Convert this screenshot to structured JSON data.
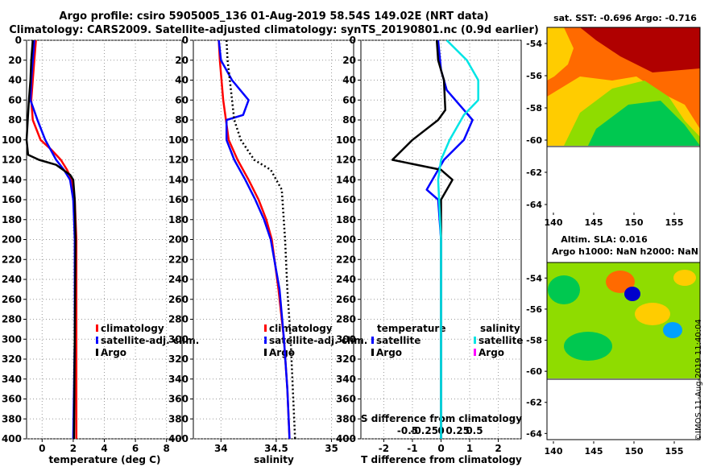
{
  "title": {
    "line1": "Argo profile: csiro 5905005_136 01-Aug-2019 58.54S 149.02E (NRT data)",
    "line2": "Climatology: CARS2009. Satellite-adjusted climatology: synTS_20190801.nc (0.9d earlier)"
  },
  "credit": "©IMOS 11-Aug-2019 11:40:04",
  "depth_ticks": [
    0,
    20,
    40,
    60,
    80,
    100,
    120,
    140,
    160,
    180,
    200,
    220,
    240,
    260,
    280,
    300,
    320,
    340,
    360,
    380,
    400
  ],
  "chart_data": [
    {
      "type": "line",
      "name": "temperature",
      "xlabel": "temperature (deg C)",
      "ylabel": "depth",
      "xlim": [
        -1,
        9
      ],
      "ylim": [
        400,
        0
      ],
      "xticks": [
        0,
        2,
        4,
        6,
        8
      ],
      "tick_labels": [
        "0",
        "2",
        "4",
        "6",
        "8"
      ],
      "legend": [
        "climatology",
        "satellite-adj. clim.",
        "Argo"
      ],
      "series": [
        {
          "name": "climatology",
          "color": "#ff0000",
          "style": "solid",
          "points": [
            [
              -0.4,
              0
            ],
            [
              -0.5,
              20
            ],
            [
              -0.6,
              40
            ],
            [
              -0.7,
              60
            ],
            [
              -0.6,
              80
            ],
            [
              -0.1,
              100
            ],
            [
              0.6,
              110
            ],
            [
              1.2,
              120
            ],
            [
              1.6,
              130
            ],
            [
              1.9,
              140
            ],
            [
              2.1,
              160
            ],
            [
              2.15,
              180
            ],
            [
              2.2,
              200
            ],
            [
              2.2,
              250
            ],
            [
              2.2,
              300
            ],
            [
              2.2,
              350
            ],
            [
              2.2,
              400
            ]
          ]
        },
        {
          "name": "satellite-adj. clim.",
          "color": "#0000ff",
          "style": "solid",
          "points": [
            [
              -0.5,
              0
            ],
            [
              -0.6,
              20
            ],
            [
              -0.7,
              40
            ],
            [
              -0.75,
              60
            ],
            [
              -0.3,
              80
            ],
            [
              0.2,
              100
            ],
            [
              0.9,
              120
            ],
            [
              1.4,
              130
            ],
            [
              1.8,
              140
            ],
            [
              2.0,
              160
            ],
            [
              2.05,
              180
            ],
            [
              2.1,
              200
            ],
            [
              2.1,
              300
            ],
            [
              2.0,
              400
            ]
          ]
        },
        {
          "name": "Argo",
          "color": "#000000",
          "style": "solid",
          "points": [
            [
              -0.6,
              0
            ],
            [
              -0.7,
              20
            ],
            [
              -0.75,
              40
            ],
            [
              -0.85,
              60
            ],
            [
              -1.0,
              100
            ],
            [
              -0.9,
              115
            ],
            [
              -0.2,
              120
            ],
            [
              0.9,
              125
            ],
            [
              1.8,
              135
            ],
            [
              2.0,
              140
            ],
            [
              2.1,
              160
            ],
            [
              2.15,
              200
            ],
            [
              2.1,
              300
            ],
            [
              2.05,
              400
            ]
          ]
        }
      ]
    },
    {
      "type": "line",
      "name": "salinity",
      "xlabel": "salinity",
      "ylabel": "depth",
      "xlim": [
        33.75,
        35.2
      ],
      "ylim": [
        400,
        0
      ],
      "xticks": [
        34,
        34.5,
        35
      ],
      "tick_labels": [
        "34",
        "34.5",
        "35"
      ],
      "legend": [
        "climatology",
        "satellite-adj. clim.",
        "Argo"
      ],
      "series": [
        {
          "name": "climatology",
          "color": "#ff0000",
          "style": "solid",
          "points": [
            [
              33.98,
              0
            ],
            [
              33.99,
              20
            ],
            [
              34.02,
              60
            ],
            [
              34.07,
              100
            ],
            [
              34.15,
              120
            ],
            [
              34.25,
              140
            ],
            [
              34.34,
              160
            ],
            [
              34.41,
              180
            ],
            [
              34.46,
              200
            ],
            [
              34.52,
              250
            ],
            [
              34.57,
              300
            ],
            [
              34.6,
              350
            ],
            [
              34.62,
              400
            ]
          ]
        },
        {
          "name": "satellite-adj. clim.",
          "color": "#0000ff",
          "style": "solid",
          "points": [
            [
              33.98,
              0
            ],
            [
              34.0,
              20
            ],
            [
              34.1,
              40
            ],
            [
              34.25,
              60
            ],
            [
              34.2,
              75
            ],
            [
              34.05,
              80
            ],
            [
              34.05,
              100
            ],
            [
              34.12,
              120
            ],
            [
              34.22,
              140
            ],
            [
              34.31,
              160
            ],
            [
              34.39,
              180
            ],
            [
              34.45,
              200
            ],
            [
              34.53,
              250
            ],
            [
              34.57,
              300
            ],
            [
              34.6,
              350
            ],
            [
              34.62,
              400
            ]
          ]
        },
        {
          "name": "Argo",
          "color": "#000000",
          "style": "dotted",
          "points": [
            [
              34.05,
              0
            ],
            [
              34.06,
              20
            ],
            [
              34.08,
              40
            ],
            [
              34.12,
              80
            ],
            [
              34.18,
              100
            ],
            [
              34.3,
              120
            ],
            [
              34.45,
              130
            ],
            [
              34.55,
              150
            ],
            [
              34.58,
              200
            ],
            [
              34.6,
              250
            ],
            [
              34.63,
              300
            ],
            [
              34.65,
              350
            ],
            [
              34.67,
              400
            ]
          ]
        }
      ]
    },
    {
      "type": "line",
      "name": "difference",
      "xlabel": "T difference from climatology",
      "ylabel": "depth",
      "xlim": [
        -2.8,
        2.8
      ],
      "ylim": [
        400,
        0
      ],
      "xticks": [
        -2,
        -1,
        0,
        1,
        2
      ],
      "tick_labels": [
        "-2",
        "-1",
        "0",
        "1",
        "2"
      ],
      "top_axis_label": "S difference from climatology",
      "top_axis_ticks": [
        -0.5,
        -0.25,
        0,
        0.25,
        0.5
      ],
      "top_axis_tick_labels": [
        "-0.5",
        "-0.25",
        "0",
        "0.25",
        "0.5"
      ],
      "legend_temperature_title": "temperature",
      "legend_salinity_title": "salinity",
      "legend": [
        "satellite",
        "Argo",
        "satellite",
        "Argo"
      ],
      "series": [
        {
          "name": "T satellite",
          "color": "#0000ff",
          "style": "solid",
          "points": [
            [
              -0.1,
              0
            ],
            [
              0,
              30
            ],
            [
              0.2,
              50
            ],
            [
              0.8,
              70
            ],
            [
              1.1,
              80
            ],
            [
              0.8,
              100
            ],
            [
              0.1,
              120
            ],
            [
              -0.3,
              140
            ],
            [
              -0.5,
              150
            ],
            [
              -0.1,
              160
            ],
            [
              0,
              200
            ],
            [
              0,
              400
            ]
          ]
        },
        {
          "name": "T Argo",
          "color": "#000000",
          "style": "solid",
          "points": [
            [
              -0.15,
              0
            ],
            [
              -0.1,
              20
            ],
            [
              0.1,
              40
            ],
            [
              0.15,
              70
            ],
            [
              -0.1,
              80
            ],
            [
              -1.0,
              100
            ],
            [
              -1.7,
              120
            ],
            [
              0,
              130
            ],
            [
              0.4,
              140
            ],
            [
              0,
              160
            ],
            [
              0,
              200
            ],
            [
              0,
              400
            ]
          ]
        },
        {
          "name": "S satellite",
          "color": "#00e5e5",
          "style": "solid",
          "points": [
            [
              0.2,
              0
            ],
            [
              0.9,
              20
            ],
            [
              1.3,
              40
            ],
            [
              1.3,
              60
            ],
            [
              0.8,
              75
            ],
            [
              0.3,
              100
            ],
            [
              0,
              120
            ],
            [
              -0.1,
              140
            ],
            [
              0,
              200
            ],
            [
              0,
              400
            ]
          ]
        },
        {
          "name": "S Argo",
          "color": "#ff00ff",
          "style": "solid",
          "points": []
        }
      ]
    }
  ],
  "maps": [
    {
      "name": "sst",
      "title": "sat. SST: -0.696 Argo: -0.716",
      "lat_ticks": [
        -54,
        -56,
        -58,
        -60,
        -62,
        -64
      ],
      "lon_ticks": [
        140,
        145,
        150,
        155
      ],
      "lat_tick_labels": [
        "-54",
        "-56",
        "-58",
        "-60",
        "-62",
        "-64"
      ],
      "lon_tick_labels": [
        "140",
        "145",
        "150",
        "155"
      ],
      "palette": [
        "#ff0000",
        "#ff6a00",
        "#ffcc00",
        "#8fdc00",
        "#00c850",
        "#00a0ff",
        "#0000cc"
      ]
    },
    {
      "name": "sla",
      "title_line1": "Altim. SLA: 0.016",
      "title_line2": "Argo h1000: NaN h2000: NaN",
      "lat_ticks": [
        -54,
        -56,
        -58,
        -60,
        -62,
        -64
      ],
      "lon_ticks": [
        140,
        145,
        150,
        155
      ],
      "lat_tick_labels": [
        "-54",
        "-56",
        "-58",
        "-60",
        "-62",
        "-64"
      ],
      "lon_tick_labels": [
        "140",
        "145",
        "150",
        "155"
      ],
      "palette": [
        "#ff0000",
        "#ff6a00",
        "#ffcc00",
        "#8fdc00",
        "#00c850",
        "#00a0ff",
        "#0000cc"
      ]
    }
  ]
}
